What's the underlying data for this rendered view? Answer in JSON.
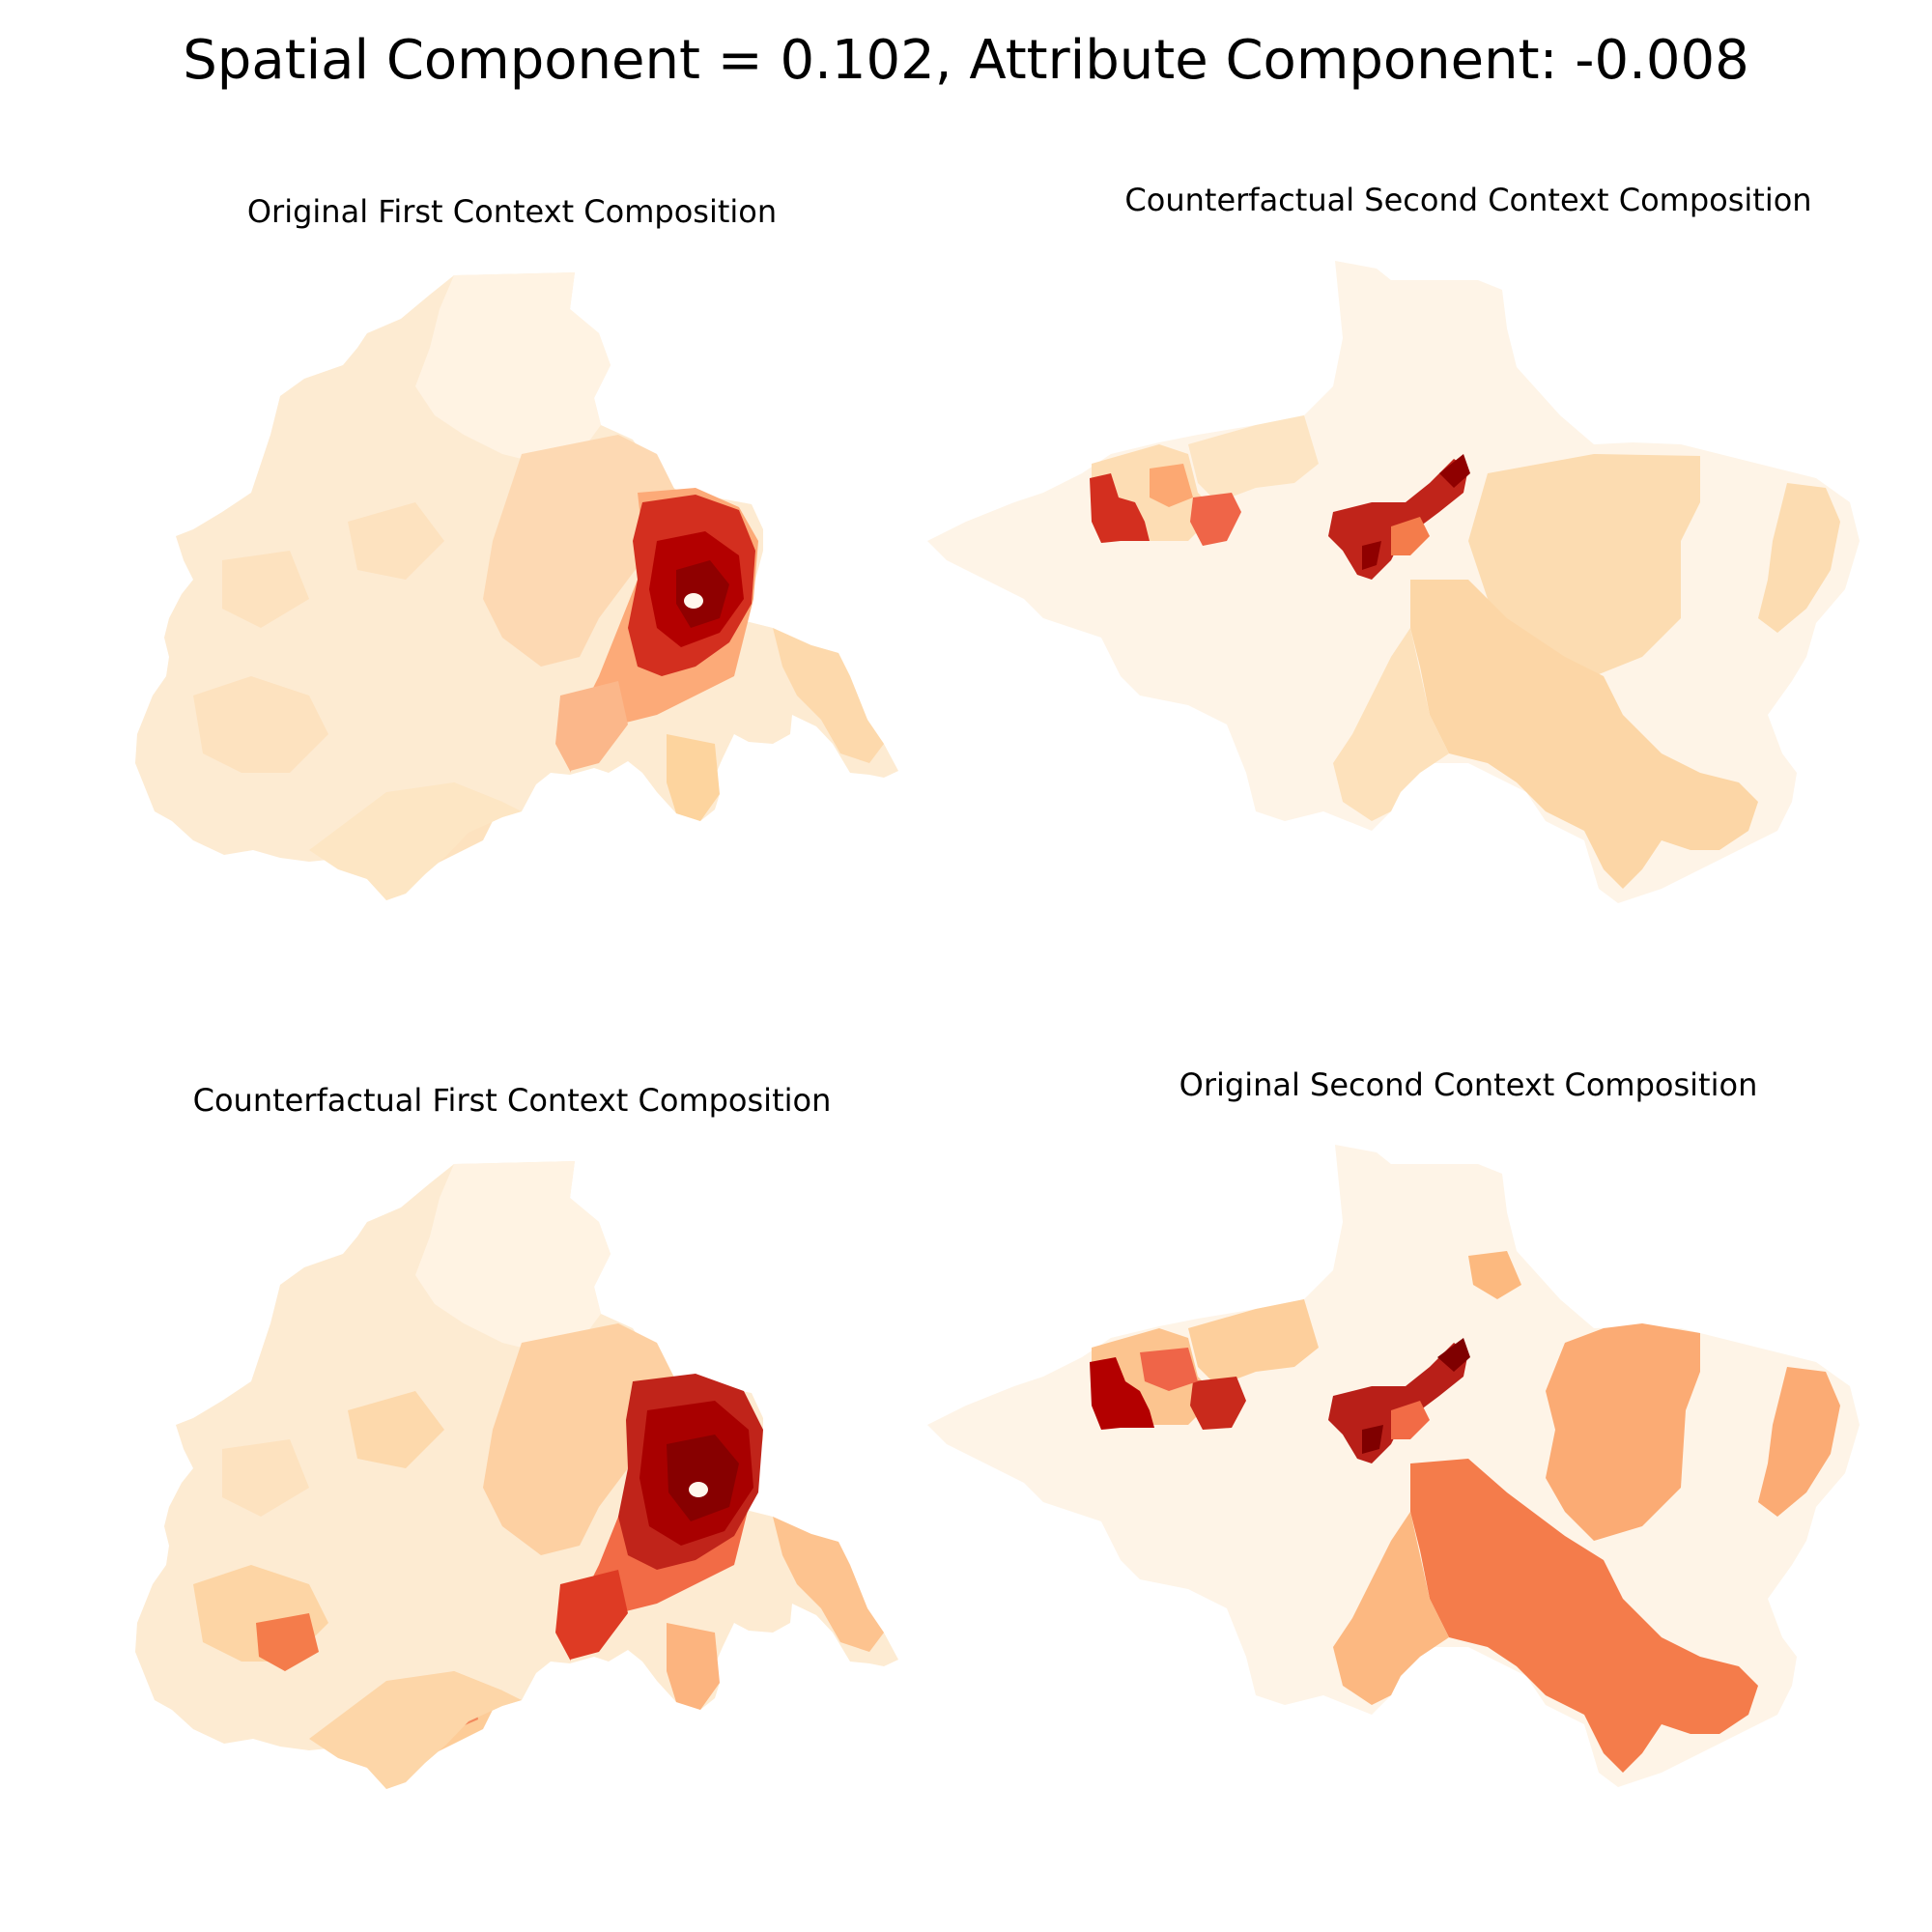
{
  "figure": {
    "suptitle": "Spatial Component = 0.102, Attribute Component: -0.008"
  },
  "panels": [
    {
      "title": "Original First Context Composition"
    },
    {
      "title": "Counterfactual Second Context Composition"
    },
    {
      "title": "Counterfactual First Context Composition"
    },
    {
      "title": "Original Second Context Composition"
    }
  ],
  "colormap": {
    "name": "OrRd",
    "stops": [
      "#fff7ec",
      "#fee8c8",
      "#fdd49e",
      "#fdbb84",
      "#fc8d59",
      "#ef6548",
      "#d7301f",
      "#b30000",
      "#7f0000"
    ]
  }
}
